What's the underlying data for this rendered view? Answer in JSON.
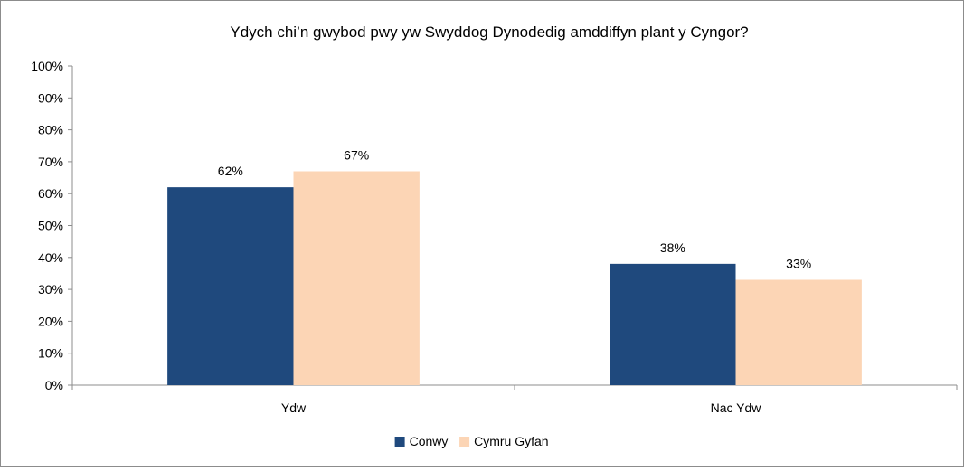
{
  "chart_data": {
    "type": "bar",
    "title": "Ydych chi’n gwybod pwy yw Swyddog Dynodedig amddiffyn plant y Cyngor?",
    "xlabel": "",
    "ylabel": "",
    "categories": [
      "Ydw",
      "Nac Ydw"
    ],
    "series": [
      {
        "name": "Conwy",
        "values": [
          62,
          38
        ],
        "color": "#1f497d"
      },
      {
        "name": "Cymru Gyfan",
        "values": [
          67,
          33
        ],
        "color": "#fcd5b5"
      }
    ],
    "value_format": "percent",
    "ylim": [
      0,
      100
    ],
    "yticks": [
      "0%",
      "10%",
      "20%",
      "30%",
      "40%",
      "50%",
      "60%",
      "70%",
      "80%",
      "90%",
      "100%"
    ],
    "grid": false,
    "legend": "bottom"
  }
}
